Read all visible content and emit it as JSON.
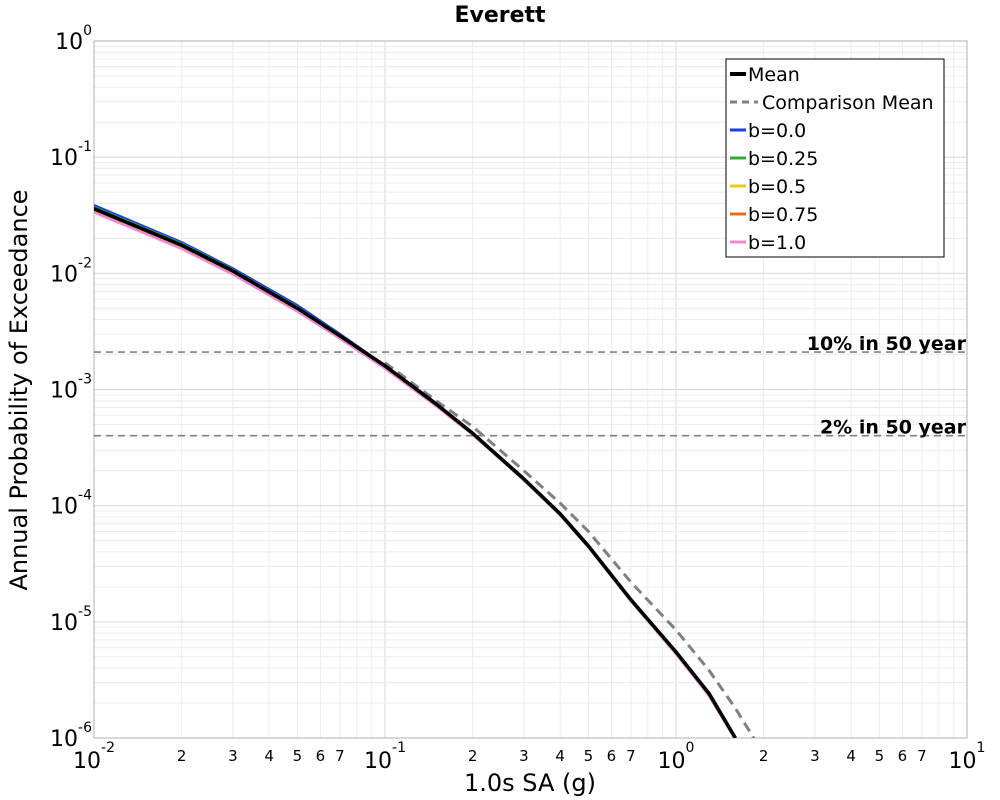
{
  "chart_data": {
    "type": "line",
    "title": "Everett",
    "xlabel": "1.0s SA (g)",
    "ylabel": "Annual Probability of Exceedance",
    "x_scale": "log",
    "y_scale": "log",
    "xlim": [
      0.01,
      10
    ],
    "ylim": [
      1e-06,
      1
    ],
    "grid": true,
    "legend_position": "top-right",
    "x_major_ticks": [
      {
        "base": "10",
        "exp": "-2"
      },
      {
        "base": "10",
        "exp": "-1"
      },
      {
        "base": "10",
        "exp": "0"
      },
      {
        "base": "10",
        "exp": "1"
      }
    ],
    "y_major_ticks": [
      {
        "base": "10",
        "exp": "0"
      },
      {
        "base": "10",
        "exp": "-1"
      },
      {
        "base": "10",
        "exp": "-2"
      },
      {
        "base": "10",
        "exp": "-3"
      },
      {
        "base": "10",
        "exp": "-4"
      },
      {
        "base": "10",
        "exp": "-5"
      },
      {
        "base": "10",
        "exp": "-6"
      }
    ],
    "x_minor_tick_labels": [
      "2",
      "3",
      "4",
      "5",
      "6",
      "7"
    ],
    "reference_lines": [
      {
        "label": "10% in 50 year",
        "y": 0.0021
      },
      {
        "label": "2% in 50 year",
        "y": 0.0004
      }
    ],
    "series": [
      {
        "name": "Mean",
        "color": "#000000",
        "style": "solid",
        "x": [
          0.01,
          0.02,
          0.03,
          0.05,
          0.07,
          0.1,
          0.15,
          0.2,
          0.3,
          0.4,
          0.5,
          0.7,
          1.0,
          1.3,
          1.6
        ],
        "y": [
          0.036,
          0.0175,
          0.0105,
          0.005,
          0.0029,
          0.0016,
          0.00075,
          0.00042,
          0.00017,
          8.5e-05,
          4.5e-05,
          1.55e-05,
          5.5e-06,
          2.4e-06,
          1e-06
        ]
      },
      {
        "name": "Comparison Mean",
        "color": "#808080",
        "style": "dashed",
        "x": [
          0.1,
          0.15,
          0.2,
          0.3,
          0.4,
          0.5,
          0.7,
          1.0,
          1.3,
          1.6,
          1.85
        ],
        "y": [
          0.0017,
          0.0008,
          0.00048,
          0.0002,
          0.000105,
          6e-05,
          2.2e-05,
          8.5e-06,
          3.8e-06,
          1.8e-06,
          1e-06
        ]
      },
      {
        "name": "b=0.0",
        "color": "#1a3ee0",
        "style": "solid",
        "x": [
          0.01,
          0.02,
          0.03,
          0.05,
          0.07,
          0.1,
          0.15,
          0.2,
          0.3,
          0.4,
          0.5,
          0.7,
          1.0,
          1.3,
          1.6
        ],
        "y": [
          0.0385,
          0.0185,
          0.011,
          0.0053,
          0.003,
          0.0016,
          0.00075,
          0.00042,
          0.00017,
          8.5e-05,
          4.5e-05,
          1.55e-05,
          5.5e-06,
          2.4e-06,
          1e-06
        ]
      },
      {
        "name": "b=0.25",
        "color": "#3aa835",
        "style": "solid",
        "x": [
          0.01,
          0.02,
          0.03,
          0.05,
          0.07,
          0.1,
          0.15,
          0.2,
          0.3,
          0.4,
          0.5,
          0.7,
          1.0,
          1.3,
          1.6
        ],
        "y": [
          0.037,
          0.018,
          0.0107,
          0.0051,
          0.00295,
          0.0016,
          0.00075,
          0.00042,
          0.00017,
          8.5e-05,
          4.5e-05,
          1.55e-05,
          5.5e-06,
          2.4e-06,
          1e-06
        ]
      },
      {
        "name": "b=0.5",
        "color": "#e8cc20",
        "style": "solid",
        "x": [
          0.01,
          0.02,
          0.03,
          0.05,
          0.07,
          0.1,
          0.15,
          0.2,
          0.3,
          0.4,
          0.5,
          0.7,
          1.0,
          1.3,
          1.6
        ],
        "y": [
          0.036,
          0.0175,
          0.0105,
          0.005,
          0.0029,
          0.0016,
          0.00075,
          0.00042,
          0.00017,
          8.5e-05,
          4.5e-05,
          1.55e-05,
          5.5e-06,
          2.4e-06,
          1e-06
        ]
      },
      {
        "name": "b=0.75",
        "color": "#e86a1a",
        "style": "solid",
        "x": [
          0.01,
          0.02,
          0.03,
          0.05,
          0.07,
          0.1,
          0.15,
          0.2,
          0.3,
          0.4,
          0.5,
          0.7,
          1.0,
          1.3,
          1.6
        ],
        "y": [
          0.035,
          0.017,
          0.0102,
          0.0049,
          0.00285,
          0.00158,
          0.00074,
          0.000415,
          0.000168,
          8.4e-05,
          4.45e-05,
          1.53e-05,
          5.4e-06,
          2.3e-06,
          9.8e-07
        ]
      },
      {
        "name": "b=1.0",
        "color": "#f08ad0",
        "style": "solid",
        "x": [
          0.01,
          0.02,
          0.03,
          0.05,
          0.07,
          0.1,
          0.15,
          0.2,
          0.3,
          0.4,
          0.5,
          0.7,
          1.0,
          1.3,
          1.6
        ],
        "y": [
          0.0335,
          0.0163,
          0.0098,
          0.0047,
          0.00275,
          0.00152,
          0.00072,
          0.00041,
          0.000166,
          8.3e-05,
          4.4e-05,
          1.51e-05,
          5.3e-06,
          2.3e-06,
          9.7e-07
        ]
      }
    ],
    "draw_order": [
      2,
      3,
      4,
      5,
      6,
      1,
      0
    ]
  }
}
